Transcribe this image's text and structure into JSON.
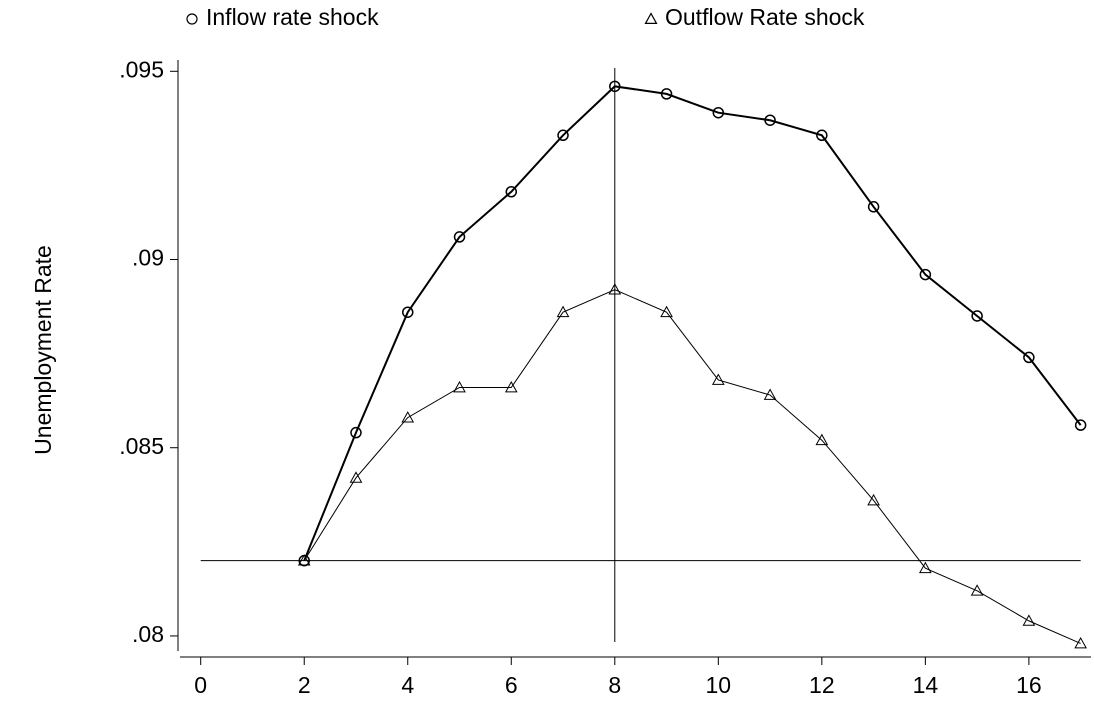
{
  "chart_data": {
    "type": "line",
    "y_label": "Unemployment Rate",
    "x": [
      2,
      3,
      4,
      5,
      6,
      7,
      8,
      9,
      10,
      11,
      12,
      13,
      14,
      15,
      16,
      17
    ],
    "series": [
      {
        "name": "Inflow rate shock",
        "color": "#000000",
        "marker": "circle",
        "values": [
          0.082,
          0.0854,
          0.0886,
          0.0906,
          0.0918,
          0.0933,
          0.0946,
          0.0944,
          0.0939,
          0.0937,
          0.0933,
          0.0914,
          0.0896,
          0.0885,
          0.0874,
          0.0856
        ]
      },
      {
        "name": "Outflow Rate shock",
        "color": "#000000",
        "marker": "triangle",
        "values": [
          0.082,
          0.0842,
          0.0858,
          0.0866,
          0.0866,
          0.0886,
          0.0892,
          0.0886,
          0.0868,
          0.0864,
          0.0852,
          0.0836,
          0.0818,
          0.0812,
          0.0804,
          0.0798
        ]
      }
    ],
    "xlim": [
      -0.4,
      17.2
    ],
    "ylim": [
      0.0796,
      0.0953
    ],
    "xticks": [
      0,
      2,
      4,
      6,
      8,
      10,
      12,
      14,
      16
    ],
    "yticks": [
      {
        "value": 0.08,
        "label": ".08"
      },
      {
        "value": 0.085,
        "label": ".085"
      },
      {
        "value": 0.09,
        "label": ".09"
      },
      {
        "value": 0.095,
        "label": ".095"
      }
    ],
    "reference_lines": {
      "y": 0.082,
      "x": 8
    },
    "grid": false,
    "legend": "top"
  }
}
